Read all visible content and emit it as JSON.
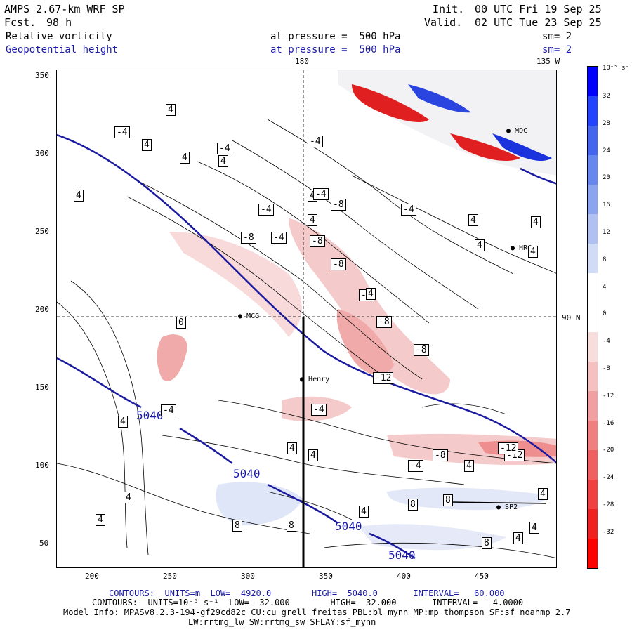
{
  "header": {
    "model": "AMPS 2.67-km WRF SP",
    "fcst_label": "Fcst.",
    "fcst_value": "98 h",
    "init_label": "Init.",
    "init_value": "00 UTC Fri 19 Sep 25",
    "valid_label": "Valid.",
    "valid_value": "02 UTC Tue 23 Sep 25",
    "field1_name": "Relative vorticity",
    "field1_level": "at pressure =  500 hPa",
    "field1_sm": "sm= 2",
    "field2_name": "Geopotential height",
    "field2_level": "at pressure =  500 hPa",
    "field2_sm": "sm= 2"
  },
  "map": {
    "lon_180": "180",
    "lon_135w": "135 W",
    "lat_90n": "90 N",
    "x_ticks": [
      "200",
      "250",
      "300",
      "350",
      "400",
      "450"
    ],
    "y_ticks": [
      "350",
      "300",
      "250",
      "200",
      "150",
      "100",
      "50"
    ],
    "stations": [
      {
        "label": "MCG"
      },
      {
        "label": "Henry"
      },
      {
        "label": "HRC"
      },
      {
        "label": "MDC"
      },
      {
        "label": "SP2"
      }
    ],
    "height_labels": [
      "5040",
      "5040",
      "5040",
      "5040"
    ],
    "vort_labels": [
      "4",
      "-4",
      "4",
      "-4",
      "4",
      "4",
      "-4",
      "-4",
      "-4",
      "-8",
      "-8",
      "-8",
      "4",
      "4",
      "-4",
      "-8",
      "-12",
      "-8",
      "-8",
      "-12",
      "-4",
      "4",
      "4",
      "-4",
      "-8",
      "-4",
      "4",
      "8",
      "8",
      "8",
      "8",
      "8",
      "4",
      "4",
      "4",
      "4",
      "4",
      "4",
      "4",
      "4",
      "4",
      "4",
      "-4",
      "-12",
      "-4",
      "4",
      "4",
      "4",
      "0"
    ]
  },
  "colorbar": {
    "units": "10⁻⁵ s⁻¹",
    "labels": [
      "32",
      "28",
      "24",
      "20",
      "16",
      "12",
      "8",
      "4",
      "0",
      "-4",
      "-8",
      "-12",
      "-16",
      "-20",
      "-24",
      "-28",
      "-32"
    ],
    "colors": [
      "#0000ff",
      "#2244ff",
      "#4466ee",
      "#6688ee",
      "#8aa4ee",
      "#b0c0f0",
      "#d0dcf6",
      "#ffffff",
      "#ffffff",
      "#f8dddd",
      "#f4c0c0",
      "#f0a0a0",
      "#f08080",
      "#f06060",
      "#f04040",
      "#f02020",
      "#ff0000"
    ]
  },
  "footer": {
    "line1": "CONTOURS:  UNITS=m  LOW=  4920.0        HIGH=  5040.0       INTERVAL=   60.000",
    "line2": "CONTOURS:  UNITS=10⁻⁵ s⁻¹  LOW= -32.000        HIGH=  32.000       INTERVAL=   4.0000",
    "line3": "Model Info: MPASv8.2.3-194-gf29cd82c CU:cu_grell_freitas PBL:bl_mynn MP:mp_thompson SF:sf_noahmp 2.7",
    "line4": "LW:rrtmg_lw SW:rrtmg_sw SFLAY:sf_mynn"
  }
}
